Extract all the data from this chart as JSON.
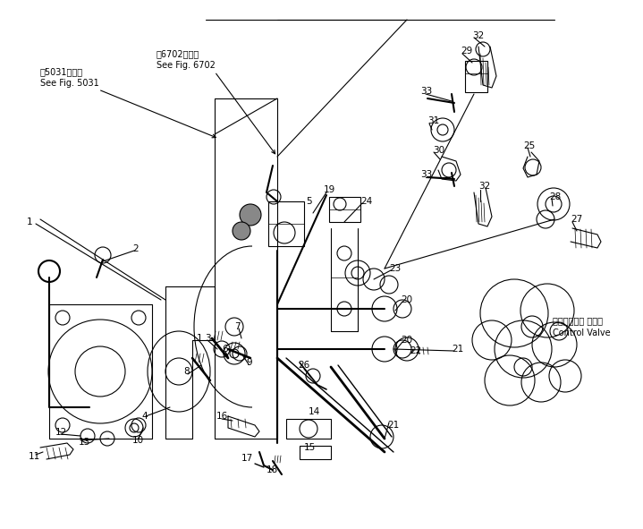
{
  "bg_color": "#ffffff",
  "line_color": "#000000",
  "figsize": [
    7.19,
    5.91
  ],
  "dpi": 100,
  "ref1_jp": "第5031図参照",
  "ref1_en": "See Fig. 5031",
  "ref2_jp": "第6702図参照",
  "ref2_en": "See Fig. 6702",
  "cv_jp": "コントロール バルブ",
  "cv_en": "Control Valve"
}
